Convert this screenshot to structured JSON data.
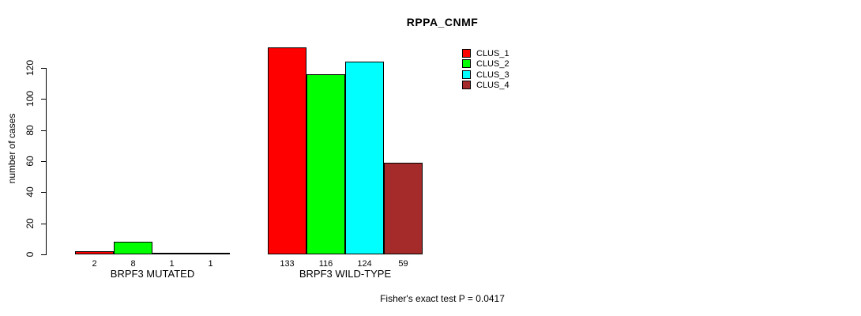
{
  "title": "RPPA_CNMF",
  "footnote": "Fisher's exact test P = 0.0417",
  "colors": {
    "background": "#ffffff",
    "axis": "#000000",
    "text": "#000000"
  },
  "chart_data": {
    "type": "bar",
    "title": "RPPA_CNMF",
    "xlabel": "",
    "ylabel": "number of cases",
    "ylim": [
      0,
      120
    ],
    "yticks": [
      0,
      20,
      40,
      60,
      80,
      100,
      120
    ],
    "grid": false,
    "legend_position": "top-right",
    "categories": [
      "BRPF3 MUTATED",
      "BRPF3 WILD-TYPE"
    ],
    "series": [
      {
        "name": "CLUS_1",
        "color": "#ff0000",
        "values": [
          2,
          133
        ]
      },
      {
        "name": "CLUS_2",
        "color": "#00ff00",
        "values": [
          8,
          116
        ]
      },
      {
        "name": "CLUS_3",
        "color": "#00ffff",
        "values": [
          1,
          124
        ]
      },
      {
        "name": "CLUS_4",
        "color": "#a52a2a",
        "values": [
          1,
          59
        ]
      }
    ],
    "bar_value_labels": [
      [
        "2",
        "8",
        "1",
        "1"
      ],
      [
        "133",
        "116",
        "124",
        "59"
      ]
    ],
    "annotation": "Fisher's exact test P = 0.0417"
  }
}
